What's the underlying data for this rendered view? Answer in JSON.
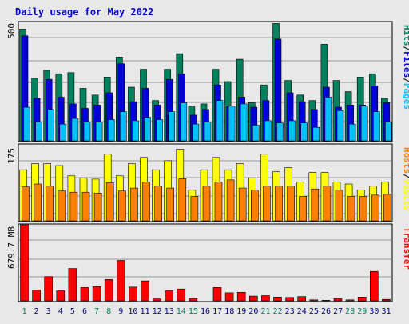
{
  "title": "Daily usage for May 2022",
  "colors": {
    "background": "#E8E8E8",
    "title": "#0000CC",
    "panel_border": "#000000",
    "grid": "#999999",
    "hits": "#00805C",
    "files": "#0000D8",
    "pages": "#00C0FF",
    "visits": "#FFFF00",
    "hosts": "#FF8000",
    "transfer": "#FF0000",
    "weekend_day": "#00805C",
    "weekday": "#000080"
  },
  "chart_data": [
    {
      "type": "bar",
      "panel": "hits-files-pages",
      "ylabel_parts": [
        "Hits",
        "/",
        "Files",
        "/",
        "Pages"
      ],
      "y_tick_label": "500",
      "ylim": [
        0,
        530
      ],
      "categories": [
        "1",
        "2",
        "3",
        "4",
        "5",
        "6",
        "7",
        "8",
        "9",
        "10",
        "11",
        "12",
        "13",
        "14",
        "15",
        "16",
        "17",
        "18",
        "19",
        "20",
        "21",
        "22",
        "23",
        "24",
        "25",
        "26",
        "27",
        "28",
        "29",
        "30",
        "31"
      ],
      "series": [
        {
          "name": "Hits",
          "values": [
            500,
            280,
            315,
            300,
            305,
            235,
            205,
            285,
            375,
            240,
            320,
            180,
            320,
            390,
            155,
            165,
            320,
            265,
            365,
            170,
            250,
            525,
            270,
            205,
            180,
            432,
            270,
            220,
            285,
            300,
            190
          ]
        },
        {
          "name": "Files",
          "values": [
            470,
            190,
            275,
            195,
            165,
            145,
            160,
            215,
            345,
            175,
            235,
            160,
            275,
            300,
            115,
            140,
            250,
            155,
            195,
            150,
            180,
            455,
            215,
            175,
            140,
            240,
            150,
            160,
            160,
            245,
            170
          ]
        },
        {
          "name": "Pages",
          "values": [
            150,
            85,
            140,
            75,
            100,
            85,
            85,
            95,
            130,
            90,
            105,
            95,
            130,
            170,
            75,
            85,
            180,
            155,
            165,
            70,
            90,
            80,
            90,
            80,
            60,
            195,
            135,
            75,
            155,
            130,
            85
          ]
        }
      ]
    },
    {
      "type": "bar",
      "panel": "hosts-visits",
      "ylabel_parts": [
        "Hosts",
        "/",
        "Visits"
      ],
      "y_tick_label": "175",
      "ylim": [
        0,
        186
      ],
      "categories": [
        "1",
        "2",
        "3",
        "4",
        "5",
        "6",
        "7",
        "8",
        "9",
        "10",
        "11",
        "12",
        "13",
        "14",
        "15",
        "16",
        "17",
        "18",
        "19",
        "20",
        "21",
        "22",
        "23",
        "24",
        "25",
        "26",
        "27",
        "28",
        "29",
        "30",
        "31"
      ],
      "series": [
        {
          "name": "Visits",
          "values": [
            125,
            140,
            140,
            135,
            110,
            105,
            102,
            163,
            110,
            140,
            155,
            125,
            147,
            175,
            75,
            125,
            155,
            125,
            140,
            105,
            163,
            120,
            130,
            95,
            118,
            118,
            95,
            90,
            75,
            85,
            95
          ]
        },
        {
          "name": "Hosts",
          "values": [
            83,
            90,
            85,
            73,
            70,
            70,
            68,
            93,
            73,
            80,
            95,
            85,
            80,
            103,
            60,
            85,
            95,
            100,
            80,
            75,
            85,
            85,
            85,
            60,
            78,
            85,
            75,
            60,
            60,
            63,
            65
          ]
        }
      ]
    },
    {
      "type": "bar",
      "panel": "transfer",
      "ylabel_parts": [
        "Transfer"
      ],
      "y_tick_label": "679.7 MB",
      "ylim": [
        0,
        800
      ],
      "categories": [
        "1",
        "2",
        "3",
        "4",
        "5",
        "6",
        "7",
        "8",
        "9",
        "10",
        "11",
        "12",
        "13",
        "14",
        "15",
        "16",
        "17",
        "18",
        "19",
        "20",
        "21",
        "22",
        "23",
        "24",
        "25",
        "26",
        "27",
        "28",
        "29",
        "30",
        "31"
      ],
      "series": [
        {
          "name": "Transfer",
          "values": [
            800,
            115,
            255,
            105,
            340,
            140,
            150,
            225,
            425,
            145,
            210,
            20,
            105,
            125,
            25,
            0,
            140,
            85,
            90,
            50,
            55,
            40,
            35,
            45,
            10,
            5,
            25,
            10,
            40,
            310,
            15
          ]
        }
      ]
    }
  ],
  "day_labels": [
    "1",
    "2",
    "3",
    "4",
    "5",
    "6",
    "7",
    "8",
    "9",
    "10",
    "11",
    "12",
    "13",
    "14",
    "15",
    "16",
    "17",
    "18",
    "19",
    "20",
    "21",
    "22",
    "23",
    "24",
    "25",
    "26",
    "27",
    "28",
    "29",
    "30",
    "31"
  ],
  "weekend_days": [
    "1",
    "7",
    "8",
    "14",
    "15",
    "21",
    "22",
    "28",
    "29"
  ]
}
